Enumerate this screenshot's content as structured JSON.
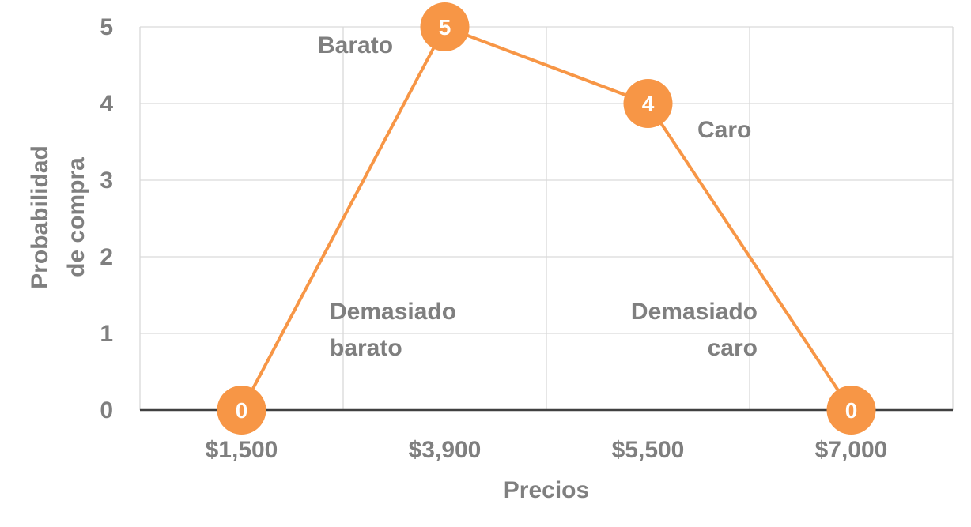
{
  "chart_data": {
    "type": "line",
    "categories": [
      "$1,500",
      "$3,900",
      "$5,500",
      "$7,000"
    ],
    "values": [
      0,
      5,
      4,
      0
    ],
    "data_labels": [
      "0",
      "5",
      "4",
      "0"
    ],
    "xlabel": "Precios",
    "ylabel_lines": [
      "Probabilidad",
      "de compra"
    ],
    "ylim": [
      0,
      5
    ],
    "y_ticks": [
      "0",
      "1",
      "2",
      "3",
      "4",
      "5"
    ],
    "grid": true,
    "line_color": "#f79646",
    "text_color": "#7f7f7f",
    "annotations": {
      "barato": "Barato",
      "caro": "Caro",
      "demasiado_barato": [
        "Demasiado",
        "barato"
      ],
      "demasiado_caro": [
        "Demasiado",
        "caro"
      ]
    }
  }
}
